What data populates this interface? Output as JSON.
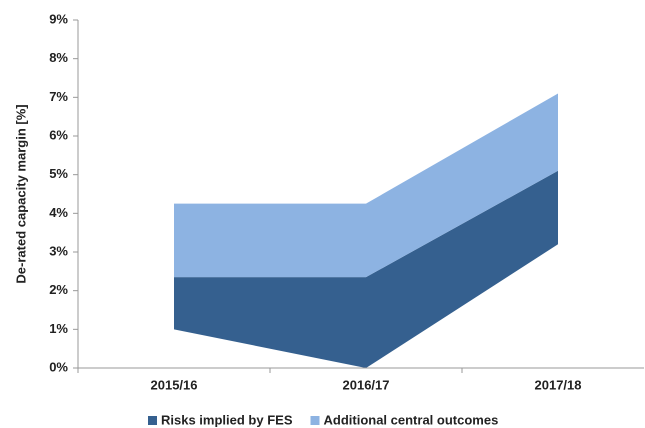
{
  "chart_data": {
    "type": "stacked_area",
    "y_label": "De-rated capacity margin [%]",
    "categories": [
      "2015/16",
      "2016/17",
      "2017/18"
    ],
    "series": [
      {
        "values": [
          1.0,
          0.0,
          3.2
        ]
      },
      {
        "name": "Risks implied by FES",
        "color": "#35608f",
        "values": [
          1.35,
          2.35,
          1.9
        ]
      },
      {
        "name": "Additional central outcomes",
        "color": "#8db3e2",
        "values": [
          1.9,
          1.9,
          2.0
        ]
      }
    ],
    "ylim": [
      0,
      9
    ],
    "yticks": [
      {
        "value": 0,
        "label": "0%"
      },
      {
        "value": 1,
        "label": "1%"
      },
      {
        "value": 2,
        "label": "2%"
      },
      {
        "value": 3,
        "label": "3%"
      },
      {
        "value": 4,
        "label": "4%"
      },
      {
        "value": 5,
        "label": "5%"
      },
      {
        "value": 6,
        "label": "6%"
      },
      {
        "value": 7,
        "label": "7%"
      },
      {
        "value": 8,
        "label": "8%"
      },
      {
        "value": 9,
        "label": "9%"
      }
    ],
    "grid": false
  }
}
